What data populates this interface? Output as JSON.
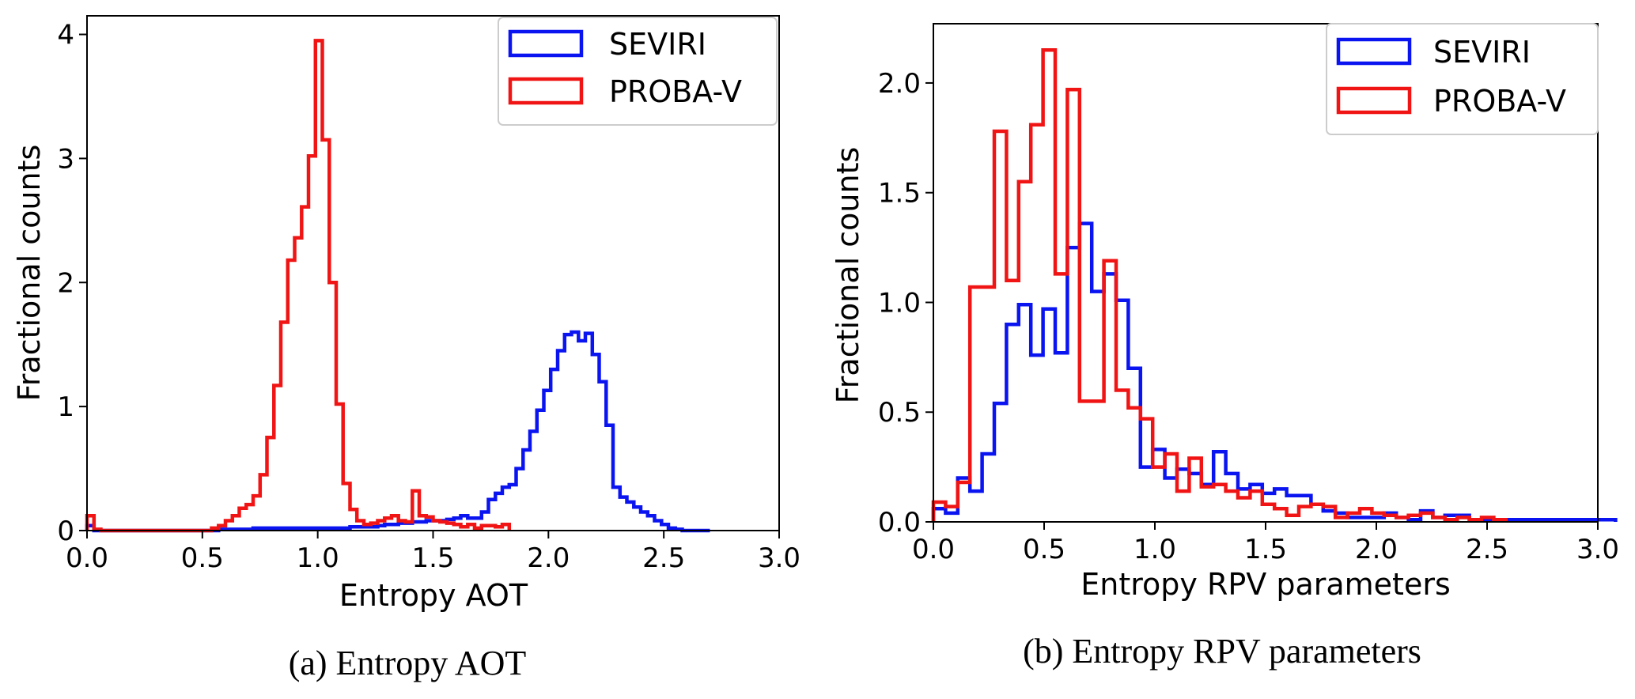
{
  "colors": {
    "seviri": "#0a14f0",
    "probav": "#f01414"
  },
  "chart_data": [
    {
      "id": "a",
      "type": "histogram",
      "title": "",
      "caption": "(a) Entropy AOT",
      "xlabel": "Entropy AOT",
      "ylabel": "Fractional counts",
      "xlim": [
        0,
        3.0
      ],
      "ylim": [
        0,
        4.15
      ],
      "xticks": [
        0.0,
        0.5,
        1.0,
        1.5,
        2.0,
        2.5,
        3.0
      ],
      "xtick_labels": [
        "0.0",
        "0.5",
        "1.0",
        "1.5",
        "2.0",
        "2.5",
        "3.0"
      ],
      "yticks": [
        0,
        1,
        2,
        3,
        4
      ],
      "ytick_labels": [
        "0",
        "1",
        "2",
        "3",
        "4"
      ],
      "legend_position": "top-right",
      "bin_start": 0.0,
      "bin_width": 0.03,
      "series": [
        {
          "name": "SEVIRI",
          "color_key": "seviri",
          "values": [
            0.04,
            0,
            0,
            0,
            0,
            0,
            0,
            0,
            0,
            0,
            0,
            0,
            0,
            0,
            0,
            0,
            0,
            0,
            0,
            0.01,
            0.01,
            0.01,
            0.01,
            0.01,
            0.02,
            0.02,
            0.02,
            0.02,
            0.02,
            0.02,
            0.02,
            0.02,
            0.02,
            0.02,
            0.02,
            0.02,
            0.02,
            0.02,
            0.03,
            0.03,
            0.03,
            0.03,
            0.04,
            0.05,
            0.05,
            0.06,
            0.06,
            0.07,
            0.07,
            0.08,
            0.08,
            0.08,
            0.09,
            0.1,
            0.12,
            0.1,
            0.1,
            0.15,
            0.25,
            0.3,
            0.35,
            0.37,
            0.5,
            0.65,
            0.8,
            0.97,
            1.13,
            1.3,
            1.45,
            1.58,
            1.6,
            1.53,
            1.59,
            1.42,
            1.2,
            0.85,
            0.35,
            0.27,
            0.23,
            0.19,
            0.15,
            0.12,
            0.08,
            0.05,
            0.02,
            0.01,
            0,
            0,
            0,
            0
          ]
        },
        {
          "name": "PROBA-V",
          "color_key": "probav",
          "values": [
            0.12,
            0.01,
            0,
            0,
            0,
            0,
            0,
            0,
            0,
            0,
            0,
            0,
            0,
            0,
            0,
            0,
            0,
            0,
            0.02,
            0.04,
            0.08,
            0.12,
            0.18,
            0.21,
            0.28,
            0.45,
            0.75,
            1.17,
            1.68,
            2.18,
            2.36,
            2.61,
            3.02,
            3.95,
            3.15,
            2.0,
            1.02,
            0.38,
            0.17,
            0.08,
            0.05,
            0.06,
            0.08,
            0.1,
            0.12,
            0.08,
            0.07,
            0.32,
            0.12,
            0.11,
            0.08,
            0.07,
            0.06,
            0.05,
            0.03,
            0.05,
            0.02,
            0.04,
            0.04,
            0.03,
            0.05
          ]
        }
      ]
    },
    {
      "id": "b",
      "type": "histogram",
      "title": "",
      "caption": "(b) Entropy RPV parameters",
      "xlabel": "Entropy  RPV parameters",
      "ylabel": "Fractional counts",
      "xlim": [
        0,
        3.0
      ],
      "ylim": [
        0,
        2.27
      ],
      "xticks": [
        0.0,
        0.5,
        1.0,
        1.5,
        2.0,
        2.5,
        3.0
      ],
      "xtick_labels": [
        "0.0",
        "0.5",
        "1.0",
        "1.5",
        "2.0",
        "2.5",
        "3.0"
      ],
      "yticks": [
        0.0,
        0.5,
        1.0,
        1.5,
        2.0
      ],
      "ytick_labels": [
        "0.0",
        "0.5",
        "1.0",
        "1.5",
        "2.0"
      ],
      "legend_position": "top-right",
      "bin_start": 0.0,
      "bin_width": 0.055,
      "series": [
        {
          "name": "SEVIRI",
          "color_key": "seviri",
          "values": [
            0.06,
            0.04,
            0.2,
            0.14,
            0.31,
            0.54,
            0.9,
            0.99,
            0.76,
            0.97,
            0.77,
            1.25,
            1.36,
            1.05,
            1.13,
            1.01,
            0.7,
            0.25,
            0.33,
            0.2,
            0.24,
            0.22,
            0.17,
            0.32,
            0.22,
            0.15,
            0.17,
            0.13,
            0.15,
            0.12,
            0.12,
            0.08,
            0.05,
            0.04,
            0.02,
            0.02,
            0.02,
            0.04,
            0.02,
            0.01,
            0.05,
            0.02,
            0.03,
            0.03,
            0.01,
            0.01,
            0.01,
            0.01,
            0.01,
            0.01,
            0.01,
            0.01,
            0.01,
            0.01,
            0.01,
            0.01
          ]
        },
        {
          "name": "PROBA-V",
          "color_key": "probav",
          "values": [
            0.09,
            0.07,
            0.18,
            1.07,
            1.07,
            1.78,
            1.1,
            1.55,
            1.81,
            2.15,
            1.13,
            1.97,
            0.55,
            0.55,
            1.19,
            0.6,
            0.52,
            0.47,
            0.25,
            0.31,
            0.14,
            0.29,
            0.16,
            0.17,
            0.14,
            0.11,
            0.14,
            0.08,
            0.06,
            0.03,
            0.07,
            0.08,
            0.07,
            0.02,
            0.04,
            0.06,
            0.04,
            0.03,
            0.02,
            0.03,
            0.04,
            0.02,
            0.01,
            0.02,
            0.01,
            0.02,
            0.01
          ]
        }
      ]
    }
  ]
}
